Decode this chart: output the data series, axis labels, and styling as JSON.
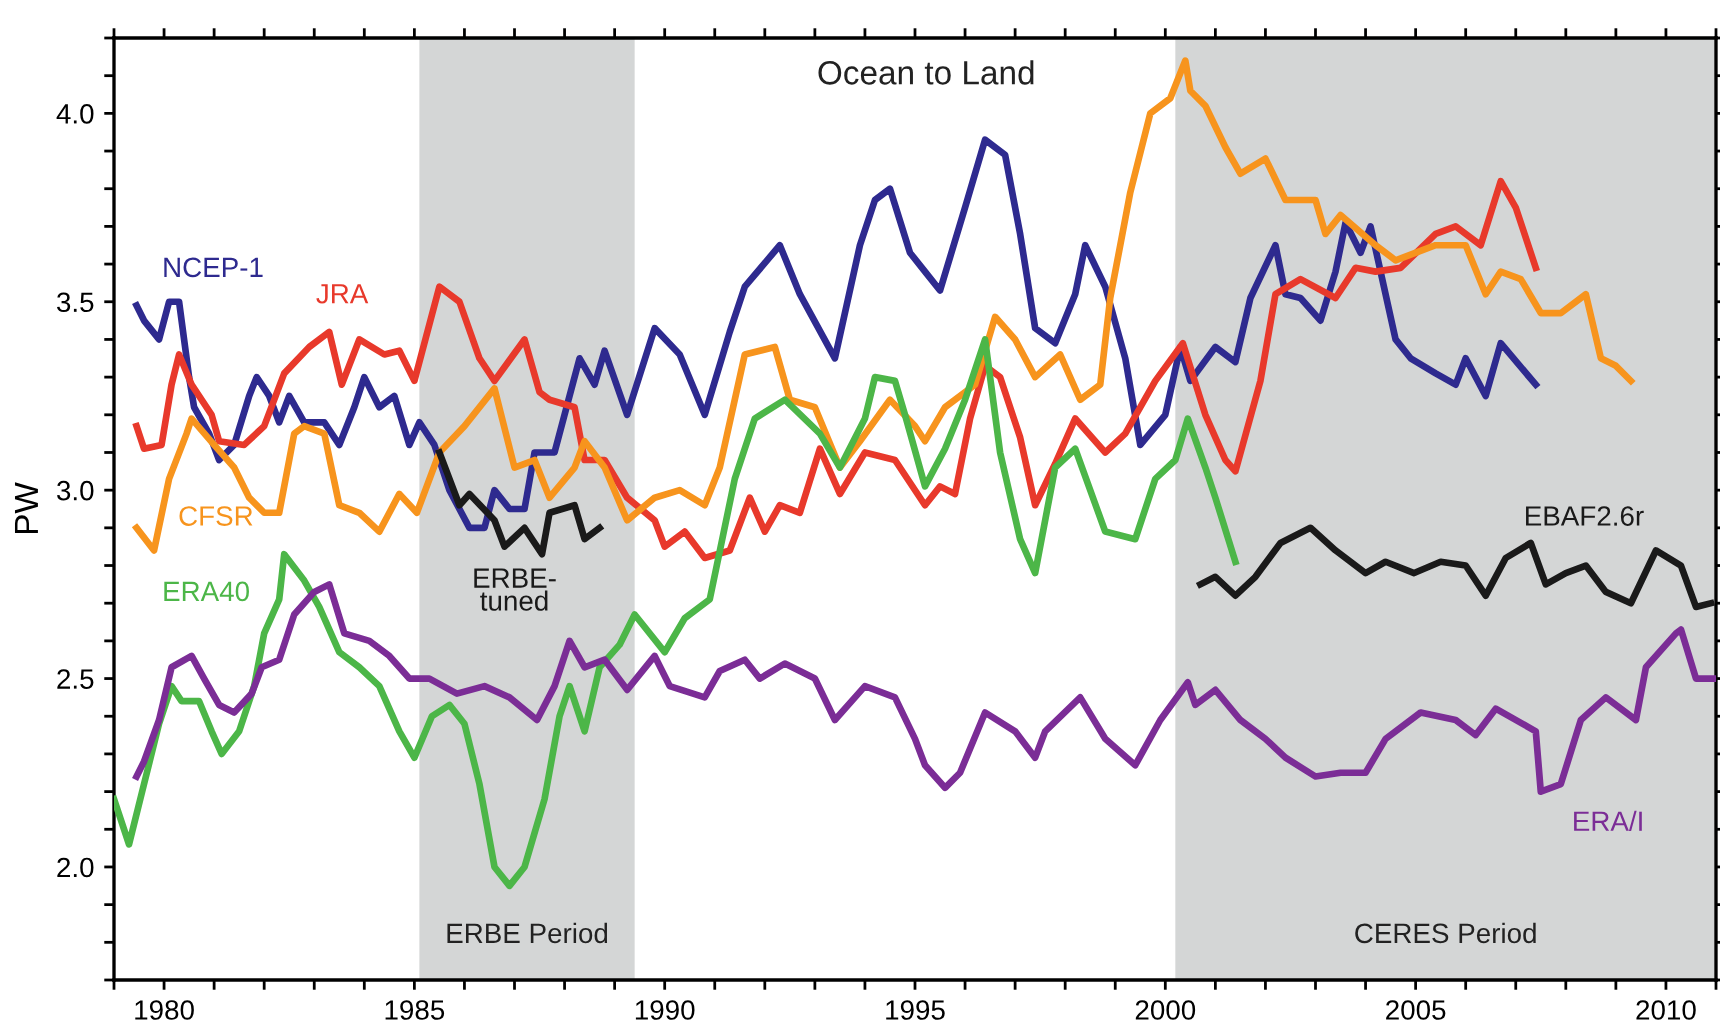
{
  "chart_data": {
    "type": "line",
    "title": "Ocean to Land",
    "ylabel": "PW",
    "xlim": [
      1979,
      2011
    ],
    "ylim": [
      1.7,
      4.2
    ],
    "xticks": [
      {
        "value": 1979,
        "label": null
      },
      {
        "value": 1980,
        "label": "1980"
      },
      {
        "value": 1981,
        "label": null
      },
      {
        "value": 1982,
        "label": null
      },
      {
        "value": 1983,
        "label": null
      },
      {
        "value": 1984,
        "label": null
      },
      {
        "value": 1985,
        "label": "1985"
      },
      {
        "value": 1986,
        "label": null
      },
      {
        "value": 1987,
        "label": null
      },
      {
        "value": 1988,
        "label": null
      },
      {
        "value": 1989,
        "label": null
      },
      {
        "value": 1990,
        "label": "1990"
      },
      {
        "value": 1991,
        "label": null
      },
      {
        "value": 1992,
        "label": null
      },
      {
        "value": 1993,
        "label": null
      },
      {
        "value": 1994,
        "label": null
      },
      {
        "value": 1995,
        "label": "1995"
      },
      {
        "value": 1996,
        "label": null
      },
      {
        "value": 1997,
        "label": null
      },
      {
        "value": 1998,
        "label": null
      },
      {
        "value": 1999,
        "label": null
      },
      {
        "value": 2000,
        "label": "2000"
      },
      {
        "value": 2001,
        "label": null
      },
      {
        "value": 2002,
        "label": null
      },
      {
        "value": 2003,
        "label": null
      },
      {
        "value": 2004,
        "label": null
      },
      {
        "value": 2005,
        "label": "2005"
      },
      {
        "value": 2006,
        "label": null
      },
      {
        "value": 2007,
        "label": null
      },
      {
        "value": 2008,
        "label": null
      },
      {
        "value": 2009,
        "label": null
      },
      {
        "value": 2010,
        "label": "2010"
      },
      {
        "value": 2011,
        "label": null
      }
    ],
    "yticks": [
      {
        "value": 1.7,
        "label": null
      },
      {
        "value": 1.8,
        "label": null
      },
      {
        "value": 1.9,
        "label": null
      },
      {
        "value": 2.0,
        "label": "2.0"
      },
      {
        "value": 2.1,
        "label": null
      },
      {
        "value": 2.2,
        "label": null
      },
      {
        "value": 2.3,
        "label": null
      },
      {
        "value": 2.4,
        "label": null
      },
      {
        "value": 2.5,
        "label": "2.5"
      },
      {
        "value": 2.6,
        "label": null
      },
      {
        "value": 2.7,
        "label": null
      },
      {
        "value": 2.8,
        "label": null
      },
      {
        "value": 2.9,
        "label": null
      },
      {
        "value": 3.0,
        "label": "3.0"
      },
      {
        "value": 3.1,
        "label": null
      },
      {
        "value": 3.2,
        "label": null
      },
      {
        "value": 3.3,
        "label": null
      },
      {
        "value": 3.4,
        "label": null
      },
      {
        "value": 3.5,
        "label": "3.5"
      },
      {
        "value": 3.6,
        "label": null
      },
      {
        "value": 3.7,
        "label": null
      },
      {
        "value": 3.8,
        "label": null
      },
      {
        "value": 3.9,
        "label": null
      },
      {
        "value": 4.0,
        "label": "4.0"
      },
      {
        "value": 4.1,
        "label": null
      },
      {
        "value": 4.2,
        "label": null
      }
    ],
    "grid": false,
    "legend": false,
    "marker": "none",
    "line_style": "solid",
    "bands": [
      {
        "axis": "x",
        "from": 1985.1,
        "to": 1989.4,
        "label": "ERBE Period",
        "color": "#d4d6d6"
      },
      {
        "axis": "x",
        "from": 2000.2,
        "to": 2011,
        "label": "CERES Period",
        "color": "#d4d6d6"
      }
    ],
    "series": [
      {
        "name": "NCEP-1",
        "color": "#2e2a8f",
        "x": [
          1979.45,
          1979.6,
          1979.9,
          1980.1,
          1980.3,
          1980.5,
          1980.6,
          1980.9,
          1981.1,
          1981.4,
          1981.7,
          1981.85,
          1982.1,
          1982.3,
          1982.5,
          1982.8,
          1983.2,
          1983.5,
          1983.8,
          1984.0,
          1984.3,
          1984.6,
          1984.9,
          1985.1,
          1985.4,
          1985.7,
          1986.1,
          1986.4,
          1986.6,
          1986.9,
          1987.2,
          1987.4,
          1987.8,
          1988.1,
          1988.3,
          1988.6,
          1988.8,
          1989.25,
          1989.8,
          1990.3,
          1990.8,
          1991.3,
          1991.6,
          1992.3,
          1992.7,
          1993.4,
          1993.9,
          1994.2,
          1994.5,
          1994.9,
          1995.2,
          1995.5,
          1996.0,
          1996.4,
          1996.8,
          1997.1,
          1997.4,
          1997.8,
          1998.2,
          1998.4,
          1998.8,
          1999.2,
          1999.5,
          2000.0,
          2000.3,
          2000.5,
          2001.0,
          2001.4,
          2001.7,
          2002.2,
          2002.4,
          2002.7,
          2003.1,
          2003.4,
          2003.6,
          2003.9,
          2004.1,
          2004.6,
          2004.9,
          2005.4,
          2005.8,
          2006.0,
          2006.4,
          2006.7,
          2007.4
        ],
        "values": [
          3.49,
          3.45,
          3.4,
          3.5,
          3.5,
          3.3,
          3.22,
          3.15,
          3.08,
          3.12,
          3.25,
          3.3,
          3.25,
          3.18,
          3.25,
          3.18,
          3.18,
          3.12,
          3.22,
          3.3,
          3.22,
          3.25,
          3.12,
          3.18,
          3.12,
          3.0,
          2.9,
          2.9,
          3.0,
          2.95,
          2.95,
          3.1,
          3.1,
          3.25,
          3.35,
          3.28,
          3.37,
          3.2,
          3.43,
          3.36,
          3.2,
          3.42,
          3.54,
          3.65,
          3.52,
          3.35,
          3.65,
          3.77,
          3.8,
          3.63,
          3.58,
          3.53,
          3.75,
          3.93,
          3.89,
          3.68,
          3.43,
          3.39,
          3.52,
          3.65,
          3.54,
          3.35,
          3.12,
          3.2,
          3.38,
          3.29,
          3.38,
          3.34,
          3.51,
          3.65,
          3.52,
          3.51,
          3.45,
          3.58,
          3.71,
          3.63,
          3.7,
          3.4,
          3.35,
          3.31,
          3.28,
          3.35,
          3.25,
          3.39,
          3.28
        ]
      },
      {
        "name": "JRA",
        "color": "#e8392b",
        "x": [
          1979.45,
          1979.6,
          1979.95,
          1980.15,
          1980.3,
          1980.55,
          1980.95,
          1981.1,
          1981.6,
          1982.0,
          1982.4,
          1982.9,
          1983.3,
          1983.55,
          1983.9,
          1984.4,
          1984.7,
          1985.0,
          1985.5,
          1985.9,
          1986.3,
          1986.6,
          1987.2,
          1987.5,
          1987.7,
          1988.2,
          1988.4,
          1988.8,
          1989.25,
          1989.8,
          1990.0,
          1990.4,
          1990.8,
          1991.3,
          1991.7,
          1992.0,
          1992.3,
          1992.7,
          1993.1,
          1993.5,
          1994.0,
          1994.6,
          1995.2,
          1995.5,
          1995.8,
          1996.1,
          1996.4,
          1996.7,
          1997.1,
          1997.4,
          1997.8,
          1998.2,
          1998.8,
          1999.2,
          1999.8,
          2000.35,
          2000.8,
          2001.2,
          2001.4,
          2001.9,
          2002.2,
          2002.7,
          2003.4,
          2003.8,
          2004.2,
          2004.7,
          2005.4,
          2005.8,
          2006.3,
          2006.7,
          2007.0,
          2007.4
        ],
        "values": [
          3.17,
          3.11,
          3.12,
          3.28,
          3.36,
          3.28,
          3.2,
          3.13,
          3.12,
          3.17,
          3.31,
          3.38,
          3.42,
          3.28,
          3.4,
          3.36,
          3.37,
          3.29,
          3.54,
          3.5,
          3.35,
          3.29,
          3.4,
          3.26,
          3.24,
          3.22,
          3.08,
          3.08,
          2.98,
          2.92,
          2.85,
          2.89,
          2.82,
          2.84,
          2.98,
          2.89,
          2.96,
          2.94,
          3.11,
          2.99,
          3.1,
          3.08,
          2.96,
          3.01,
          2.99,
          3.19,
          3.33,
          3.3,
          3.14,
          2.96,
          3.07,
          3.19,
          3.1,
          3.15,
          3.29,
          3.39,
          3.2,
          3.08,
          3.05,
          3.29,
          3.52,
          3.56,
          3.51,
          3.59,
          3.58,
          3.59,
          3.68,
          3.7,
          3.65,
          3.82,
          3.75,
          3.59
        ]
      },
      {
        "name": "CFSR",
        "color": "#f7941d",
        "x": [
          1979.45,
          1979.8,
          1980.1,
          1980.45,
          1980.55,
          1981.0,
          1981.4,
          1981.7,
          1982.0,
          1982.3,
          1982.6,
          1982.8,
          1983.2,
          1983.5,
          1983.9,
          1984.3,
          1984.7,
          1985.05,
          1985.5,
          1986.0,
          1986.6,
          1987.0,
          1987.4,
          1987.7,
          1988.2,
          1988.4,
          1988.8,
          1989.25,
          1989.8,
          1990.3,
          1990.8,
          1991.1,
          1991.6,
          1992.2,
          1992.5,
          1993.0,
          1993.5,
          1993.9,
          1994.5,
          1995.0,
          1995.2,
          1995.6,
          1996.2,
          1996.6,
          1997.0,
          1997.4,
          1997.9,
          1998.3,
          1998.7,
          1998.9,
          1999.3,
          1999.7,
          2000.1,
          2000.4,
          2000.5,
          2000.8,
          2001.2,
          2001.5,
          2002.0,
          2002.4,
          2003.0,
          2003.2,
          2003.5,
          2004.2,
          2004.6,
          2005.4,
          2006.0,
          2006.4,
          2006.7,
          2007.1,
          2007.5,
          2007.9,
          2008.4,
          2008.7,
          2009.0,
          2009.3
        ],
        "values": [
          2.9,
          2.84,
          3.03,
          3.15,
          3.19,
          3.12,
          3.06,
          2.98,
          2.94,
          2.94,
          3.15,
          3.17,
          3.15,
          2.96,
          2.94,
          2.89,
          2.99,
          2.94,
          3.1,
          3.17,
          3.27,
          3.06,
          3.08,
          2.98,
          3.06,
          3.13,
          3.06,
          2.92,
          2.98,
          3.0,
          2.96,
          3.06,
          3.36,
          3.38,
          3.24,
          3.22,
          3.06,
          3.13,
          3.24,
          3.17,
          3.13,
          3.22,
          3.28,
          3.46,
          3.4,
          3.3,
          3.36,
          3.24,
          3.28,
          3.51,
          3.79,
          4.0,
          4.04,
          4.14,
          4.06,
          4.02,
          3.91,
          3.84,
          3.88,
          3.77,
          3.77,
          3.68,
          3.73,
          3.65,
          3.61,
          3.65,
          3.65,
          3.52,
          3.58,
          3.56,
          3.47,
          3.47,
          3.52,
          3.35,
          3.33,
          3.29
        ]
      },
      {
        "name": "ERA40",
        "color": "#4cb648",
        "x": [
          1979.0,
          1979.3,
          1979.6,
          1979.9,
          1980.15,
          1980.35,
          1980.7,
          1980.95,
          1981.15,
          1981.5,
          1981.8,
          1982.0,
          1982.3,
          1982.4,
          1982.8,
          1983.1,
          1983.5,
          1983.9,
          1984.3,
          1984.7,
          1985.0,
          1985.35,
          1985.7,
          1986.0,
          1986.3,
          1986.6,
          1986.9,
          1987.2,
          1987.6,
          1987.9,
          1988.1,
          1988.4,
          1988.7,
          1989.1,
          1989.4,
          1990.0,
          1990.4,
          1990.9,
          1991.4,
          1991.8,
          1992.4,
          1993.1,
          1993.5,
          1994.0,
          1994.2,
          1994.6,
          1994.8,
          1995.2,
          1995.6,
          1996.0,
          1996.4,
          1996.7,
          1997.1,
          1997.4,
          1997.8,
          1998.2,
          1998.8,
          1999.4,
          1999.8,
          2000.2,
          2000.45,
          2000.8,
          2001.0,
          2001.4
        ],
        "values": [
          2.18,
          2.06,
          2.22,
          2.38,
          2.48,
          2.44,
          2.44,
          2.36,
          2.3,
          2.36,
          2.48,
          2.62,
          2.71,
          2.83,
          2.76,
          2.69,
          2.57,
          2.53,
          2.48,
          2.36,
          2.29,
          2.4,
          2.43,
          2.38,
          2.22,
          2.0,
          1.95,
          2.0,
          2.18,
          2.4,
          2.48,
          2.36,
          2.53,
          2.59,
          2.67,
          2.57,
          2.66,
          2.71,
          3.03,
          3.19,
          3.24,
          3.15,
          3.06,
          3.19,
          3.3,
          3.29,
          3.2,
          3.01,
          3.11,
          3.24,
          3.4,
          3.1,
          2.87,
          2.78,
          3.06,
          3.11,
          2.89,
          2.87,
          3.03,
          3.08,
          3.19,
          3.06,
          2.98,
          2.81
        ]
      },
      {
        "name": "ERBE-\ntuned",
        "color": "#1a1a1a",
        "x": [
          1985.5,
          1985.9,
          1986.1,
          1986.6,
          1986.8,
          1987.2,
          1987.55,
          1987.7,
          1988.2,
          1988.4,
          1988.7
        ],
        "values": [
          3.1,
          2.96,
          2.99,
          2.92,
          2.85,
          2.9,
          2.83,
          2.94,
          2.96,
          2.87,
          2.9
        ]
      },
      {
        "name": "EBAF2.6r",
        "color": "#1a1a1a",
        "x": [
          2000.7,
          2001.0,
          2001.4,
          2001.8,
          2002.3,
          2002.9,
          2003.4,
          2004.0,
          2004.4,
          2004.97,
          2005.5,
          2006.0,
          2006.4,
          2006.8,
          2007.3,
          2007.6,
          2008.0,
          2008.4,
          2008.8,
          2009.3,
          2009.8,
          2010.3,
          2010.6,
          2010.9
        ],
        "values": [
          2.75,
          2.77,
          2.72,
          2.77,
          2.86,
          2.9,
          2.84,
          2.78,
          2.81,
          2.78,
          2.81,
          2.8,
          2.72,
          2.82,
          2.86,
          2.75,
          2.78,
          2.8,
          2.73,
          2.7,
          2.84,
          2.8,
          2.69,
          2.7
        ]
      },
      {
        "name": "ERA/I",
        "color": "#7b2d96",
        "x": [
          1979.45,
          1979.6,
          1979.9,
          1980.15,
          1980.55,
          1980.8,
          1981.1,
          1981.4,
          1981.75,
          1981.95,
          1982.3,
          1982.6,
          1983.0,
          1983.3,
          1983.6,
          1984.1,
          1984.5,
          1984.9,
          1985.3,
          1985.85,
          1986.4,
          1986.9,
          1987.45,
          1987.8,
          1988.1,
          1988.4,
          1988.8,
          1989.25,
          1989.8,
          1990.1,
          1990.8,
          1991.1,
          1991.6,
          1991.9,
          1992.4,
          1993.0,
          1993.4,
          1994.0,
          1994.6,
          1995.0,
          1995.2,
          1995.6,
          1995.9,
          1996.4,
          1997.0,
          1997.4,
          1997.6,
          1998.3,
          1998.8,
          1999.4,
          1999.9,
          2000.45,
          2000.6,
          2001.0,
          2001.5,
          2002.0,
          2002.4,
          2003.0,
          2003.5,
          2004.0,
          2004.4,
          2005.1,
          2005.8,
          2006.2,
          2006.6,
          2007.4,
          2007.5,
          2007.9,
          2008.3,
          2008.8,
          2009.4,
          2009.6,
          2010.2,
          2010.3,
          2010.6,
          2011.0
        ],
        "values": [
          2.24,
          2.28,
          2.39,
          2.53,
          2.56,
          2.5,
          2.43,
          2.41,
          2.46,
          2.53,
          2.55,
          2.67,
          2.73,
          2.75,
          2.62,
          2.6,
          2.56,
          2.5,
          2.5,
          2.46,
          2.48,
          2.45,
          2.39,
          2.48,
          2.6,
          2.53,
          2.55,
          2.47,
          2.56,
          2.48,
          2.45,
          2.52,
          2.55,
          2.5,
          2.54,
          2.5,
          2.39,
          2.48,
          2.45,
          2.34,
          2.27,
          2.21,
          2.25,
          2.41,
          2.36,
          2.29,
          2.36,
          2.45,
          2.34,
          2.27,
          2.39,
          2.49,
          2.43,
          2.47,
          2.39,
          2.34,
          2.29,
          2.24,
          2.25,
          2.25,
          2.34,
          2.41,
          2.39,
          2.35,
          2.42,
          2.36,
          2.2,
          2.22,
          2.39,
          2.45,
          2.39,
          2.53,
          2.62,
          2.63,
          2.5,
          2.5
        ]
      }
    ]
  }
}
